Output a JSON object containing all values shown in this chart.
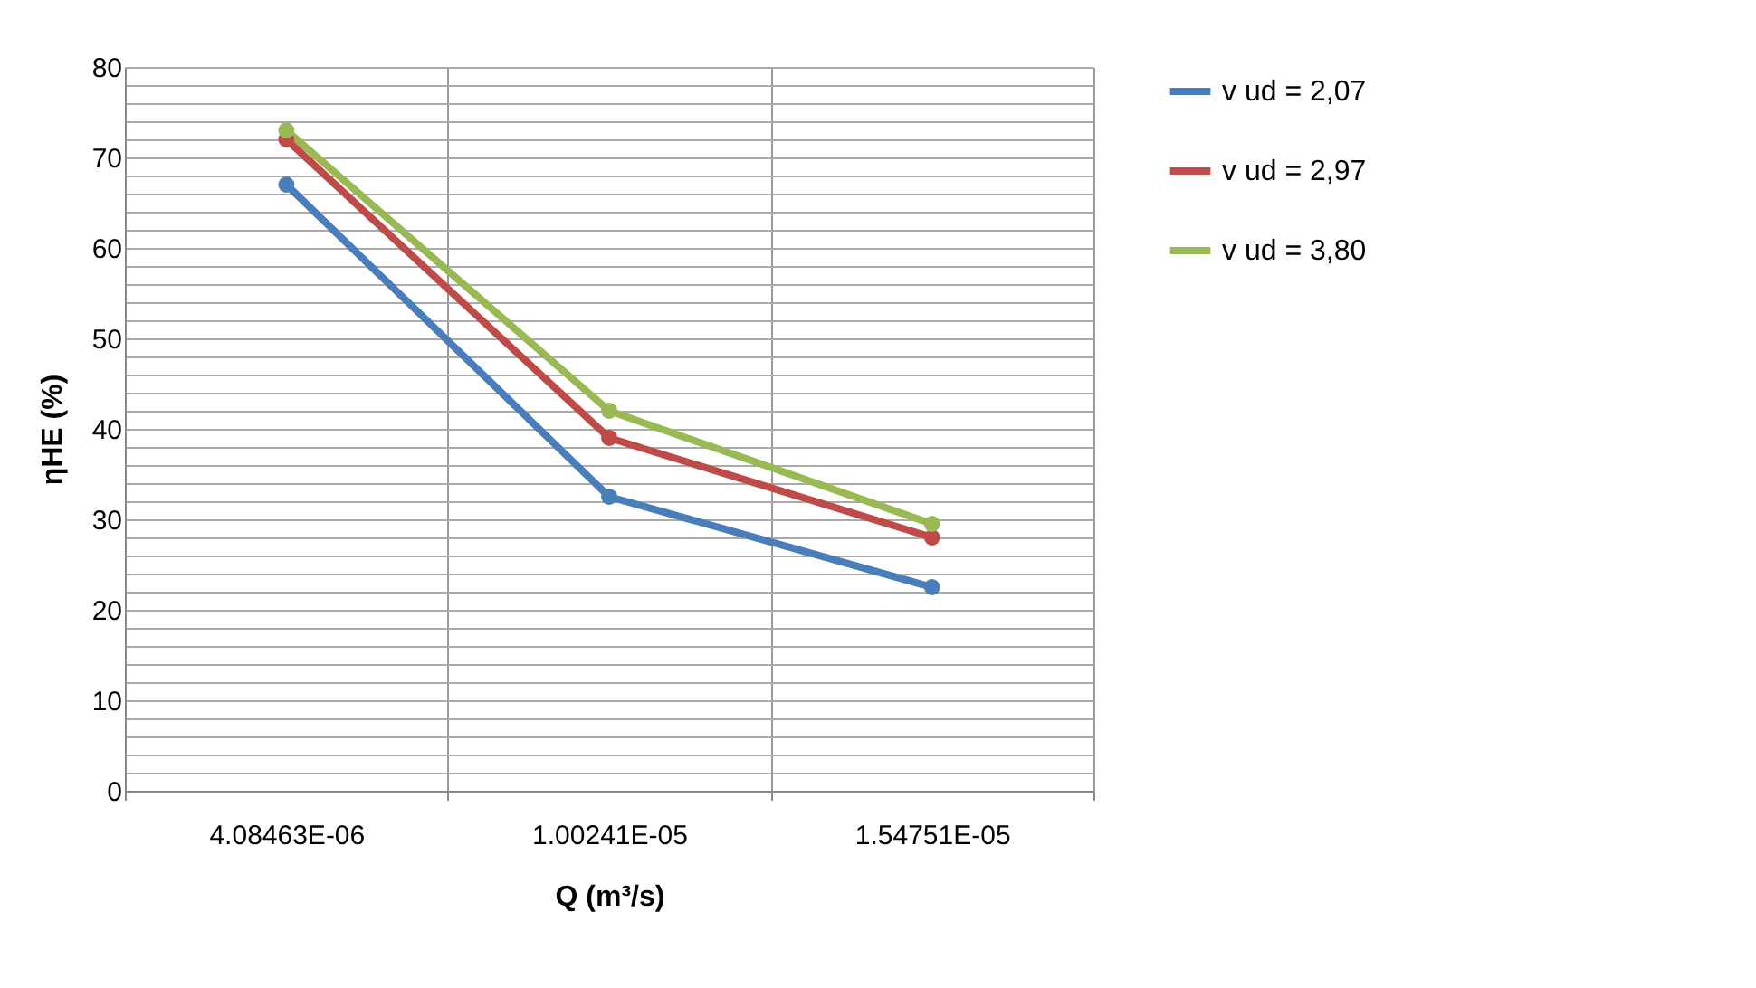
{
  "chart_data": {
    "type": "line",
    "xlabel": "Q (m³/s)",
    "ylabel": "ηHE (%)",
    "categories": [
      "4.08463E-06",
      "1.00241E-05",
      "1.54751E-05"
    ],
    "series": [
      {
        "name": "v ud = 2,07",
        "color": "#4a7ebb",
        "values": [
          67,
          32.5,
          22.5
        ]
      },
      {
        "name": "v ud = 2,97",
        "color": "#be4b48",
        "values": [
          72,
          39,
          28
        ]
      },
      {
        "name": "v ud = 3,80",
        "color": "#98b954",
        "values": [
          73,
          42,
          29.5
        ]
      }
    ],
    "ylim": [
      0,
      80
    ],
    "yticks": [
      0,
      {
        "value": 2,
        "label": null
      },
      {
        "value": 4,
        "label": null
      },
      {
        "value": 6,
        "label": null
      },
      {
        "value": 8,
        "label": null
      },
      10,
      {
        "value": 12,
        "label": null
      },
      {
        "value": 14,
        "label": null
      },
      {
        "value": 16,
        "label": null
      },
      {
        "value": 18,
        "label": null
      },
      20,
      {
        "value": 22,
        "label": null
      },
      {
        "value": 24,
        "label": null
      },
      {
        "value": 26,
        "label": null
      },
      {
        "value": 28,
        "label": null
      },
      30,
      {
        "value": 32,
        "label": null
      },
      {
        "value": 34,
        "label": null
      },
      {
        "value": 36,
        "label": null
      },
      {
        "value": 38,
        "label": null
      },
      40,
      {
        "value": 42,
        "label": null
      },
      {
        "value": 44,
        "label": null
      },
      {
        "value": 46,
        "label": null
      },
      {
        "value": 48,
        "label": null
      },
      50,
      {
        "value": 52,
        "label": null
      },
      {
        "value": 54,
        "label": null
      },
      {
        "value": 56,
        "label": null
      },
      {
        "value": 58,
        "label": null
      },
      60,
      {
        "value": 62,
        "label": null
      },
      {
        "value": 64,
        "label": null
      },
      {
        "value": 66,
        "label": null
      },
      {
        "value": 68,
        "label": null
      },
      70,
      {
        "value": 72,
        "label": null
      },
      {
        "value": 74,
        "label": null
      },
      {
        "value": 76,
        "label": null
      },
      {
        "value": 78,
        "label": null
      },
      80
    ],
    "grid": true,
    "legend": "right",
    "marker": "circle",
    "line_style": "solid"
  }
}
